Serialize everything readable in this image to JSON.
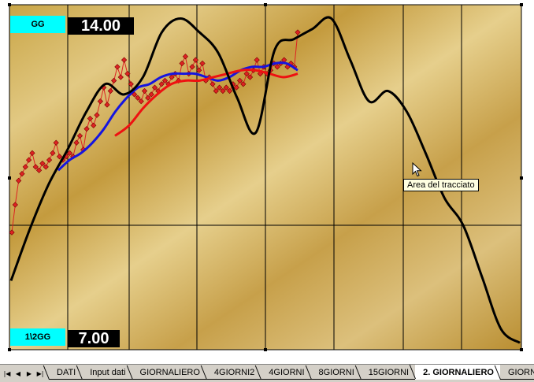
{
  "chart": {
    "label_top": "GG",
    "value_top": "14.00",
    "label_bottom": "1\\2GG",
    "value_bottom": "7.00",
    "tooltip": "Area del tracciato",
    "colors": {
      "series_black": "#000000",
      "series_blue": "#1515e0",
      "series_red": "#ee1111",
      "series_points": "#dd2222",
      "label_box": "#00ffff",
      "value_box": "#000000"
    }
  },
  "chart_data": {
    "type": "line",
    "title": "",
    "xlabel": "",
    "ylabel": "",
    "grid": true,
    "series": [
      {
        "values": [
          0.34,
          0.42,
          0.49,
          0.51,
          0.53,
          0.55,
          0.57,
          0.53,
          0.52,
          0.54,
          0.53,
          0.55,
          0.57,
          0.6,
          0.56,
          0.55,
          0.56,
          0.57,
          0.56,
          0.6,
          0.62,
          0.58,
          0.64,
          0.67,
          0.65,
          0.68,
          0.72,
          0.76,
          0.71,
          0.75,
          0.78,
          0.82,
          0.79,
          0.84,
          0.8,
          0.77,
          0.74,
          0.73,
          0.72,
          0.75,
          0.73,
          0.74,
          0.76,
          0.75,
          0.77,
          0.78,
          0.77,
          0.79,
          0.8,
          0.78,
          0.83,
          0.85,
          0.8,
          0.82,
          0.84,
          0.81,
          0.83,
          0.78,
          0.79,
          0.77,
          0.75,
          0.76,
          0.75,
          0.76,
          0.75,
          0.77,
          0.76,
          0.78,
          0.77,
          0.8,
          0.79,
          0.81,
          0.84,
          0.8,
          0.82,
          0.8,
          0.81,
          0.83,
          0.82,
          0.83,
          0.84,
          0.82,
          0.83,
          0.82,
          0.92
        ]
      },
      {
        "values": [
          0.52,
          0.55,
          0.57,
          0.6,
          0.64,
          0.69,
          0.73,
          0.76,
          0.77,
          0.79,
          0.8,
          0.8,
          0.8,
          0.79,
          0.78,
          0.79,
          0.81,
          0.82,
          0.82,
          0.83,
          0.83,
          0.81
        ]
      },
      {
        "values": [
          0.62,
          0.65,
          0.7,
          0.74,
          0.77,
          0.78,
          0.78,
          0.79,
          0.8,
          0.81,
          0.81,
          0.8,
          0.79,
          0.8
        ]
      },
      {
        "values": [
          0.2,
          0.35,
          0.48,
          0.58,
          0.69,
          0.77,
          0.74,
          0.79,
          0.92,
          0.96,
          0.92,
          0.86,
          0.73,
          0.63,
          0.87,
          0.9,
          0.93,
          0.96,
          0.84,
          0.72,
          0.75,
          0.69,
          0.57,
          0.44,
          0.36,
          0.21,
          0.06,
          0.02
        ]
      }
    ]
  },
  "sheet_tabs": [
    {
      "label": "DATI"
    },
    {
      "label": "Input dati"
    },
    {
      "label": "GIORNALIERO"
    },
    {
      "label": "4GIORNI2"
    },
    {
      "label": "4GIORNI"
    },
    {
      "label": "8GIORNI"
    },
    {
      "label": "15GIORNI"
    },
    {
      "label": "2. GIORNALIERO",
      "active": true
    },
    {
      "label": "GIORNALIER"
    }
  ]
}
